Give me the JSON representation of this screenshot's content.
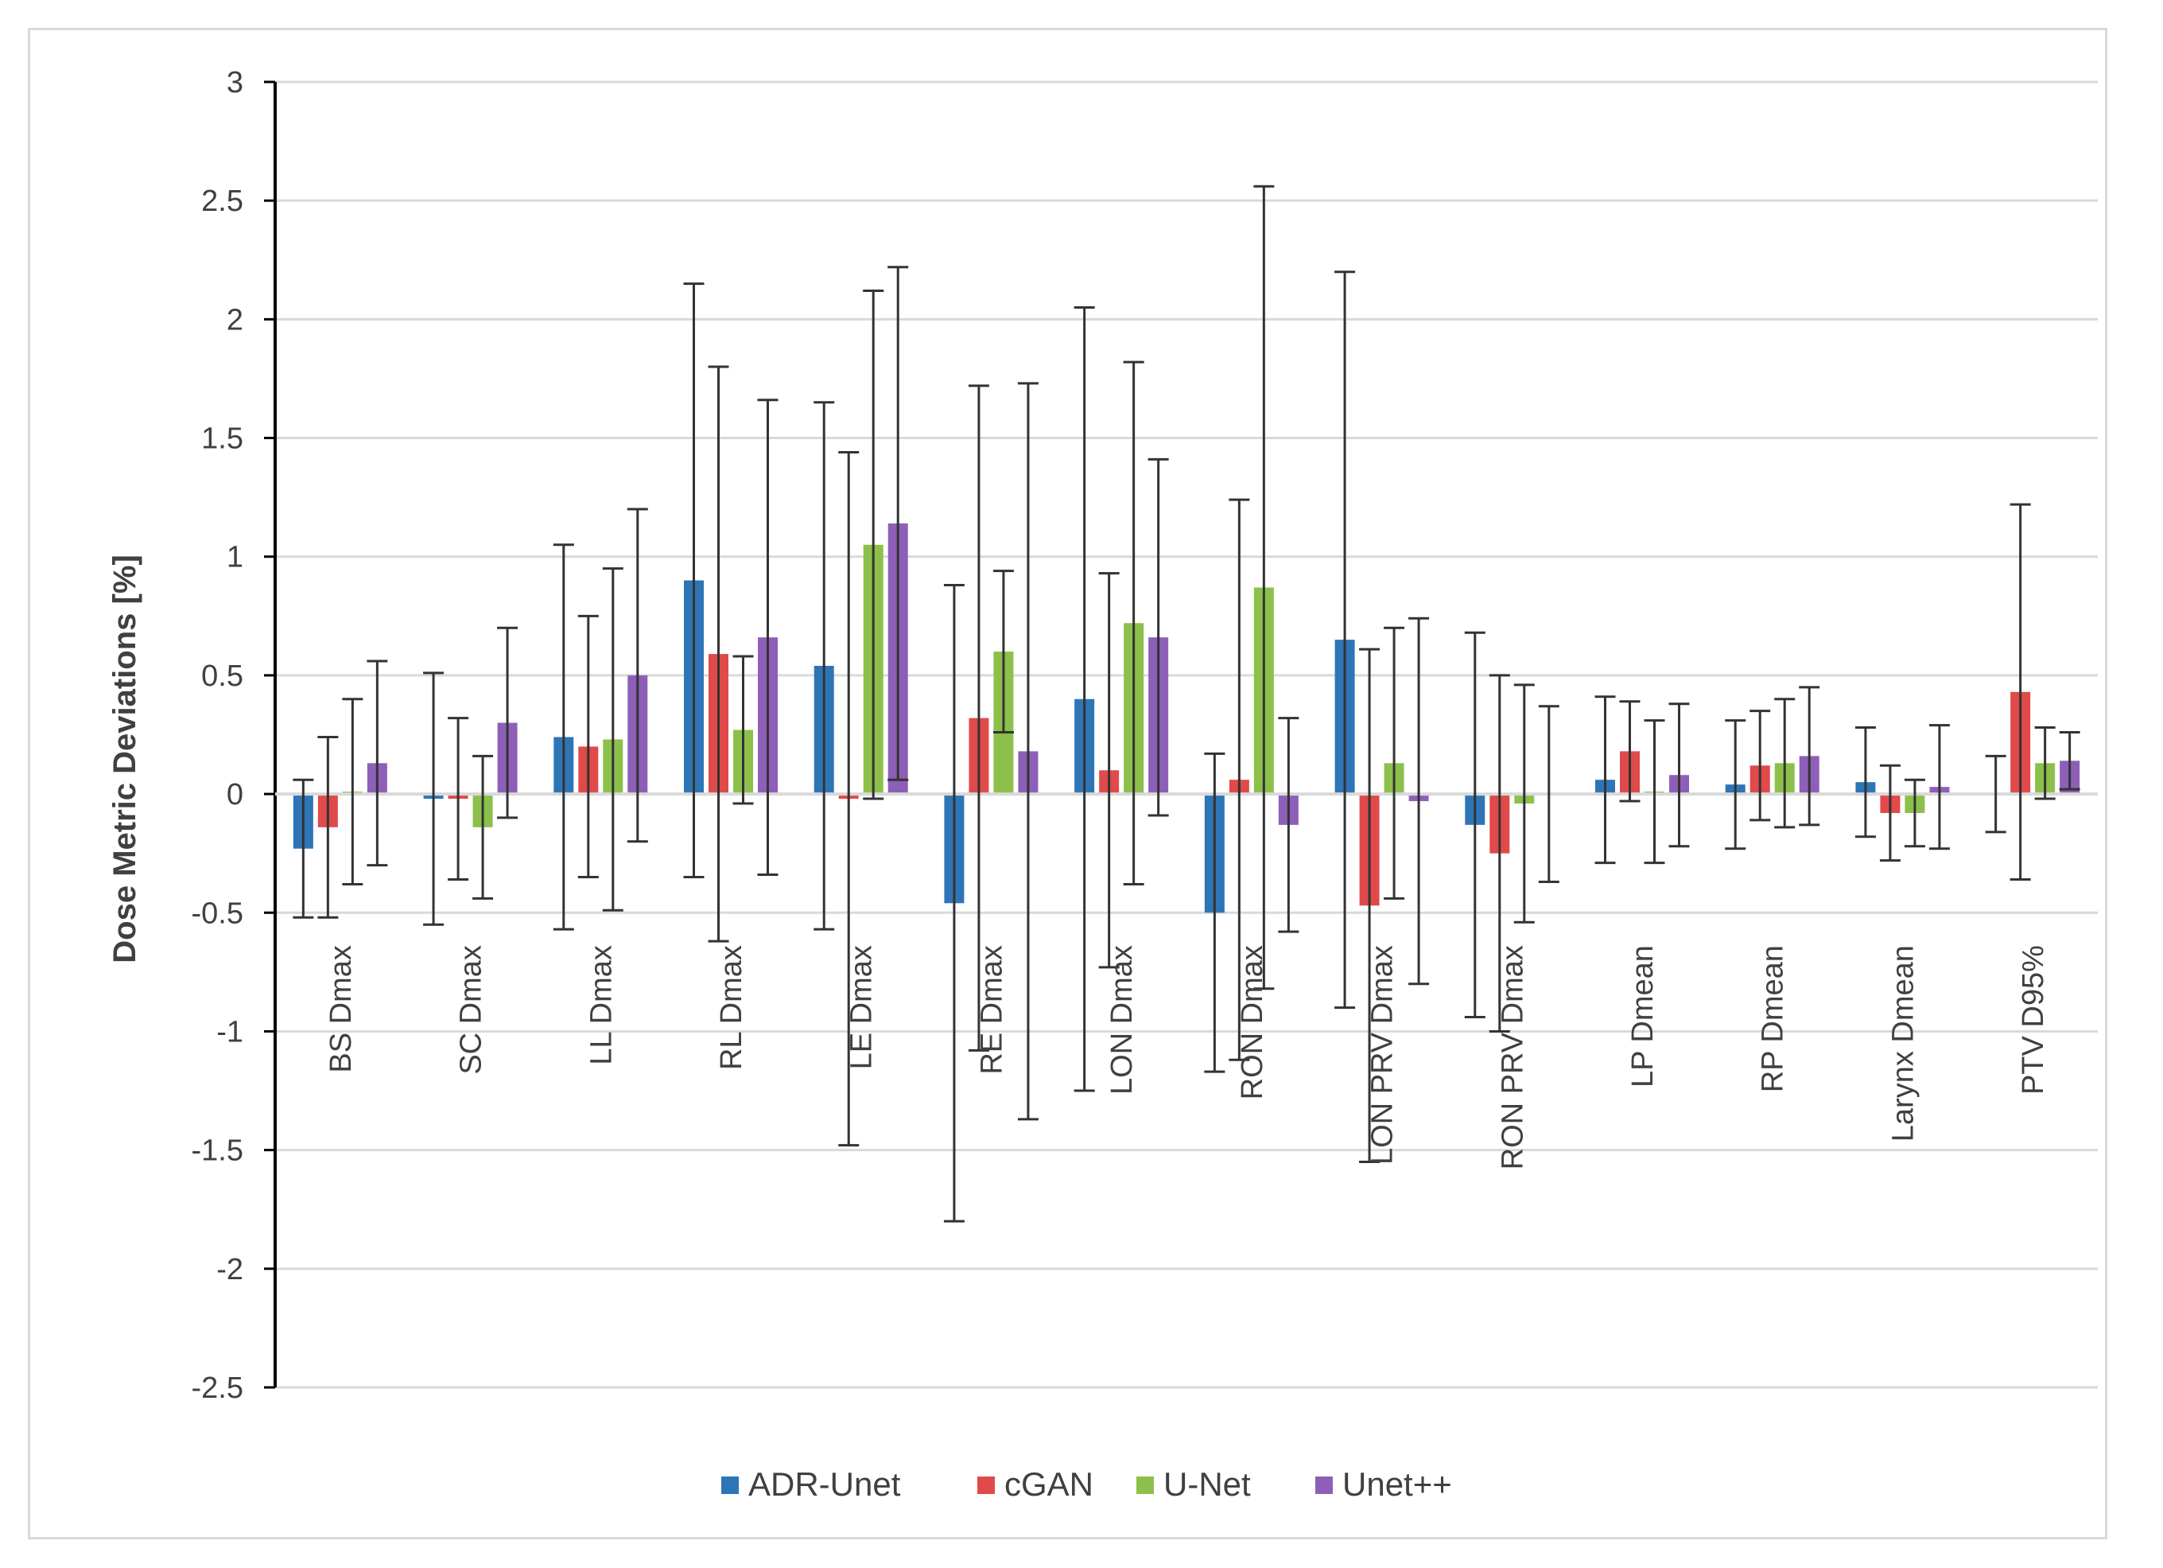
{
  "chart_data": {
    "type": "bar",
    "title": "",
    "xlabel": "",
    "ylabel": "Dose Metric Deviations [%]",
    "ylim": [
      -2.5,
      3
    ],
    "yticks": [
      3,
      2.5,
      2,
      1.5,
      1,
      0.5,
      0,
      -0.5,
      -1,
      -1.5,
      -2,
      -2.5
    ],
    "ytick_labels": [
      "3",
      "2.5",
      "2",
      "1.5",
      "1",
      "0.5",
      "0",
      "-0.5",
      "-1",
      "-1.5",
      "-2",
      "-2.5"
    ],
    "grid": true,
    "legend_position": "bottom",
    "categories": [
      "BS Dmax",
      "SC Dmax",
      "LL Dmax",
      "RL Dmax",
      "LE Dmax",
      "RE Dmax",
      "LON Dmax",
      "RON Dmax",
      "LON PRV Dmax",
      "RON PRV Dmax",
      "LP Dmean",
      "RP Dmean",
      "Larynx Dmean",
      "PTV D95%"
    ],
    "series": [
      {
        "name": "ADR-Unet",
        "color": "#2e75b6",
        "values": [
          -0.23,
          -0.02,
          0.24,
          0.9,
          0.54,
          -0.46,
          0.4,
          -0.5,
          0.65,
          -0.13,
          0.06,
          0.04,
          0.05,
          0.0
        ],
        "errors": [
          0.29,
          0.53,
          0.81,
          1.25,
          1.11,
          1.34,
          1.65,
          0.67,
          1.55,
          0.81,
          0.35,
          0.27,
          0.23,
          0.16
        ]
      },
      {
        "name": "cGAN",
        "color": "#e04a4a",
        "values": [
          -0.14,
          -0.02,
          0.2,
          0.59,
          -0.02,
          0.32,
          0.1,
          0.06,
          -0.47,
          -0.25,
          0.18,
          0.12,
          -0.08,
          0.43
        ],
        "errors": [
          0.38,
          0.34,
          0.55,
          1.21,
          1.46,
          1.4,
          0.83,
          1.18,
          1.08,
          0.75,
          0.21,
          0.23,
          0.2,
          0.79
        ]
      },
      {
        "name": "U-Net",
        "color": "#8cc04b",
        "values": [
          0.01,
          -0.14,
          0.23,
          0.27,
          1.05,
          0.6,
          0.72,
          0.87,
          0.13,
          -0.04,
          0.01,
          0.13,
          -0.08,
          0.13
        ],
        "errors": [
          0.39,
          0.3,
          0.72,
          0.31,
          1.07,
          0.34,
          1.1,
          1.69,
          0.57,
          0.5,
          0.3,
          0.27,
          0.14,
          0.15
        ]
      },
      {
        "name": "Unet++",
        "color": "#8e5fb8",
        "values": [
          0.13,
          0.3,
          0.5,
          0.66,
          1.14,
          0.18,
          0.66,
          -0.13,
          -0.03,
          0.0,
          0.08,
          0.16,
          0.03,
          0.14
        ],
        "errors": [
          0.43,
          0.4,
          0.7,
          1.0,
          1.08,
          1.55,
          0.75,
          0.45,
          0.77,
          0.37,
          0.3,
          0.29,
          0.26,
          0.12
        ]
      }
    ]
  }
}
